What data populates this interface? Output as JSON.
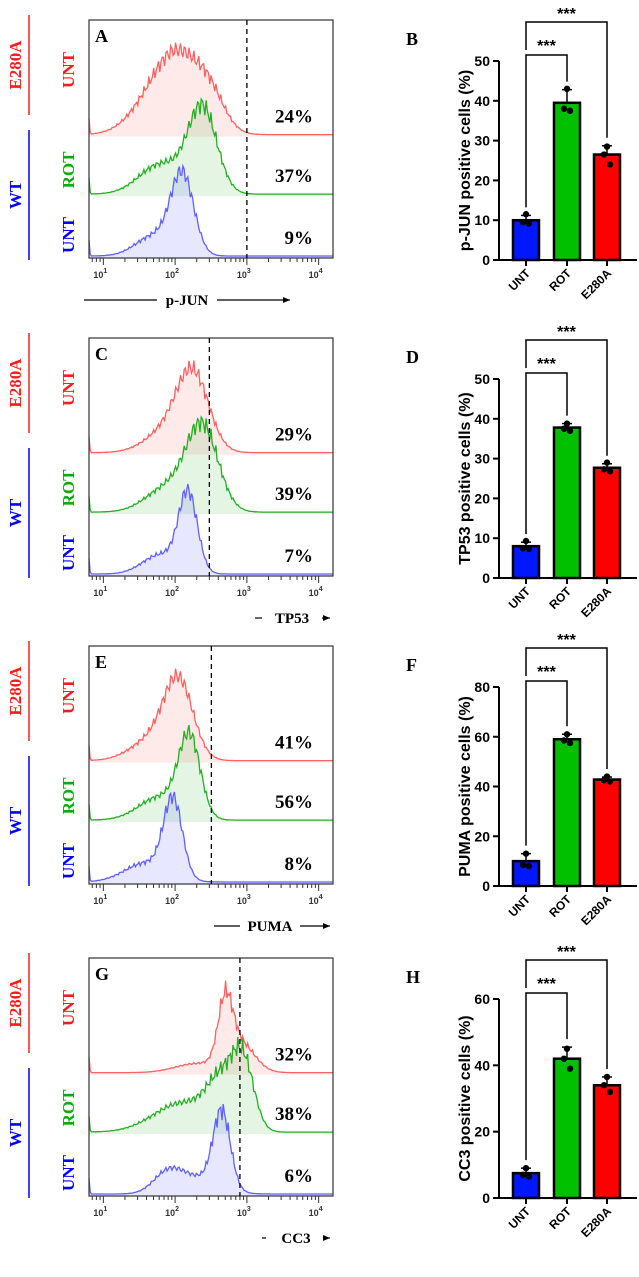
{
  "groups": {
    "mutant": "E280A",
    "wildtype": "WT"
  },
  "conditions": {
    "untreated": "UNT",
    "rotenone": "ROT"
  },
  "colors": {
    "UNT_WT": "#0000ff",
    "ROT": "#00b000",
    "E280A": "#ff0000"
  },
  "significance": "***",
  "chart_data": [
    {
      "panel": "A",
      "type": "area",
      "subtype": "flow-cytometry-histogram",
      "xscale": "log",
      "xlim": [
        6,
        16000
      ],
      "xticks": [
        "10^1",
        "10^2",
        "10^3",
        "10^4"
      ],
      "xlabel": "p-JUN",
      "gate": 1000,
      "series": [
        {
          "group": "E280A",
          "condition": "UNT",
          "color": "#ff5a5a",
          "peak": 120,
          "percent_positive": "24%"
        },
        {
          "group": "WT",
          "condition": "ROT",
          "color": "#22aa22",
          "peak": 250,
          "percent_positive": "37%"
        },
        {
          "group": "WT",
          "condition": "UNT",
          "color": "#5a5aff",
          "peak": 110,
          "percent_positive": "9%"
        }
      ]
    },
    {
      "panel": "B",
      "type": "bar",
      "ylabel": "p-JUN positive cells (%)",
      "ylim": [
        0,
        50
      ],
      "yticks": [
        0,
        10,
        20,
        30,
        40,
        50
      ],
      "categories": [
        "UNT",
        "ROT",
        "E280A"
      ],
      "values": [
        10,
        39.5,
        26.5
      ],
      "points": [
        [
          11.5,
          9.5,
          9.2
        ],
        [
          43,
          38,
          37.5
        ],
        [
          28.5,
          26.5,
          24
        ]
      ],
      "errors": [
        1.2,
        3.3,
        2.2
      ],
      "comparisons": [
        [
          "UNT",
          "ROT",
          "***"
        ],
        [
          "UNT",
          "E280A",
          "***"
        ]
      ]
    },
    {
      "panel": "C",
      "type": "area",
      "subtype": "flow-cytometry-histogram",
      "xscale": "log",
      "xlim": [
        6,
        16000
      ],
      "xticks": [
        "10^1",
        "10^2",
        "10^3",
        "10^4"
      ],
      "xlabel": "TP53",
      "gate": 300,
      "series": [
        {
          "group": "E280A",
          "condition": "UNT",
          "color": "#ff5a5a",
          "peak": 170,
          "percent_positive": "29%"
        },
        {
          "group": "WT",
          "condition": "ROT",
          "color": "#22aa22",
          "peak": 220,
          "percent_positive": "39%"
        },
        {
          "group": "WT",
          "condition": "UNT",
          "color": "#5a5aff",
          "peak": 150,
          "percent_positive": "7%"
        }
      ]
    },
    {
      "panel": "D",
      "type": "bar",
      "ylabel": "TP53 positive cells (%)",
      "ylim": [
        0,
        50
      ],
      "yticks": [
        0,
        10,
        20,
        30,
        40,
        50
      ],
      "categories": [
        "UNT",
        "ROT",
        "E280A"
      ],
      "values": [
        8,
        37.8,
        27.7
      ],
      "points": [
        [
          9.3,
          7.5,
          7.3
        ],
        [
          38.8,
          37.5,
          37
        ],
        [
          29,
          27.3,
          26.8
        ]
      ],
      "errors": [
        1,
        1,
        1
      ],
      "comparisons": [
        [
          "UNT",
          "ROT",
          "***"
        ],
        [
          "UNT",
          "E280A",
          "***"
        ]
      ]
    },
    {
      "panel": "E",
      "type": "area",
      "subtype": "flow-cytometry-histogram",
      "xscale": "log",
      "xlim": [
        6,
        16000
      ],
      "xticks": [
        "10^1",
        "10^2",
        "10^3",
        "10^4"
      ],
      "xlabel": "PUMA",
      "gate": 320,
      "series": [
        {
          "group": "E280A",
          "condition": "UNT",
          "color": "#ff5a5a",
          "peak": 110,
          "percent_positive": "41%"
        },
        {
          "group": "WT",
          "condition": "ROT",
          "color": "#22aa22",
          "peak": 160,
          "percent_positive": "56%"
        },
        {
          "group": "WT",
          "condition": "UNT",
          "color": "#5a5aff",
          "peak": 90,
          "percent_positive": "8%"
        }
      ]
    },
    {
      "panel": "F",
      "type": "bar",
      "ylabel": "PUMA positive cells (%)",
      "ylim": [
        0,
        80
      ],
      "yticks": [
        0,
        20,
        40,
        60,
        80
      ],
      "categories": [
        "UNT",
        "ROT",
        "E280A"
      ],
      "values": [
        10,
        59,
        42.8
      ],
      "points": [
        [
          13,
          8.5,
          8
        ],
        [
          61,
          58.5,
          57.5
        ],
        [
          44,
          42.5,
          42
        ]
      ],
      "errors": [
        3,
        2,
        1
      ],
      "comparisons": [
        [
          "UNT",
          "ROT",
          "***"
        ],
        [
          "UNT",
          "E280A",
          "***"
        ]
      ]
    },
    {
      "panel": "G",
      "type": "area",
      "subtype": "flow-cytometry-histogram",
      "xscale": "log",
      "xlim": [
        6,
        16000
      ],
      "xticks": [
        "10^1",
        "10^2",
        "10^3",
        "10^4"
      ],
      "xlabel": "CC3",
      "gate": 800,
      "series": [
        {
          "group": "E280A",
          "condition": "UNT",
          "color": "#ff5a5a",
          "peak": 500,
          "percent_positive": "32%"
        },
        {
          "group": "WT",
          "condition": "ROT",
          "color": "#22aa22",
          "peak": 900,
          "percent_positive": "38%"
        },
        {
          "group": "WT",
          "condition": "UNT",
          "color": "#5a5aff",
          "peak": 450,
          "percent_positive": "6%"
        }
      ]
    },
    {
      "panel": "H",
      "type": "bar",
      "ylabel": "CC3 positive cells (%)",
      "ylim": [
        0,
        60
      ],
      "yticks": [
        0,
        20,
        40,
        60
      ],
      "categories": [
        "UNT",
        "ROT",
        "E280A"
      ],
      "values": [
        7.5,
        42,
        34
      ],
      "points": [
        [
          9,
          7,
          6.5
        ],
        [
          45,
          42,
          39
        ],
        [
          36.5,
          34,
          32
        ]
      ],
      "errors": [
        1.5,
        3.5,
        2.5
      ],
      "comparisons": [
        [
          "UNT",
          "ROT",
          "***"
        ],
        [
          "UNT",
          "E280A",
          "***"
        ]
      ]
    }
  ]
}
